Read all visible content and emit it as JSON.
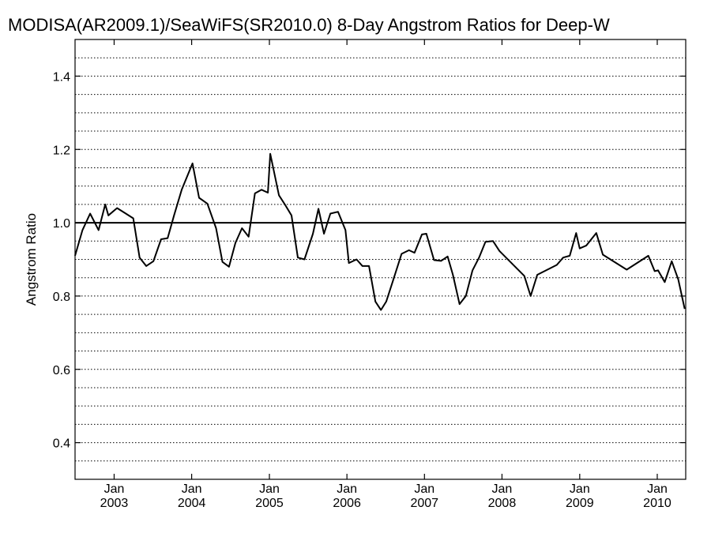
{
  "chart_data": {
    "type": "line",
    "title": "MODISA(AR2009.1)/SeaWiFS(SR2010.0) 8-Day Angstrom Ratios for Deep-W",
    "xlabel": "",
    "ylabel": "Angstrom Ratio",
    "xlim": [
      "2002-07-01",
      "2010-05-15"
    ],
    "ylim": [
      0.3,
      1.5
    ],
    "y_ticks": [
      "0.4",
      "0.6",
      "0.8",
      "1.0",
      "1.2",
      "1.4"
    ],
    "x_ticks": [
      {
        "month": "Jan",
        "year": "2003",
        "date": "2003-01-01"
      },
      {
        "month": "Jan",
        "year": "2004",
        "date": "2004-01-01"
      },
      {
        "month": "Jan",
        "year": "2005",
        "date": "2005-01-01"
      },
      {
        "month": "Jan",
        "year": "2006",
        "date": "2006-01-01"
      },
      {
        "month": "Jan",
        "year": "2007",
        "date": "2007-01-01"
      },
      {
        "month": "Jan",
        "year": "2008",
        "date": "2008-01-01"
      },
      {
        "month": "Jan",
        "year": "2009",
        "date": "2009-01-01"
      },
      {
        "month": "Jan",
        "year": "2010",
        "date": "2010-01-01"
      }
    ],
    "grid": "horizontal dotted every 0.05",
    "reference_line": 1.0,
    "series": [
      {
        "points": [
          [
            "2002-07-01",
            0.91
          ],
          [
            "2002-08-05",
            0.98
          ],
          [
            "2002-09-10",
            1.025
          ],
          [
            "2002-10-20",
            0.98
          ],
          [
            "2002-11-20",
            1.05
          ],
          [
            "2002-12-05",
            1.02
          ],
          [
            "2003-01-15",
            1.04
          ],
          [
            "2003-02-25",
            1.025
          ],
          [
            "2003-04-01",
            1.012
          ],
          [
            "2003-05-01",
            0.905
          ],
          [
            "2003-06-01",
            0.882
          ],
          [
            "2003-07-05",
            0.895
          ],
          [
            "2003-08-10",
            0.955
          ],
          [
            "2003-09-10",
            0.958
          ],
          [
            "2003-10-10",
            1.02
          ],
          [
            "2003-11-15",
            1.09
          ],
          [
            "2004-01-05",
            1.162
          ],
          [
            "2004-02-05",
            1.068
          ],
          [
            "2004-03-15",
            1.052
          ],
          [
            "2004-04-25",
            0.985
          ],
          [
            "2004-05-25",
            0.893
          ],
          [
            "2004-06-25",
            0.88
          ],
          [
            "2004-07-25",
            0.945
          ],
          [
            "2004-08-25",
            0.985
          ],
          [
            "2004-09-25",
            0.962
          ],
          [
            "2004-10-25",
            1.08
          ],
          [
            "2004-11-25",
            1.09
          ],
          [
            "2004-12-25",
            1.082
          ],
          [
            "2005-01-05",
            1.188
          ],
          [
            "2005-02-15",
            1.075
          ],
          [
            "2005-03-15",
            1.05
          ],
          [
            "2005-04-15",
            1.02
          ],
          [
            "2005-05-15",
            0.905
          ],
          [
            "2005-06-15",
            0.9
          ],
          [
            "2005-07-25",
            0.97
          ],
          [
            "2005-08-20",
            1.038
          ],
          [
            "2005-09-15",
            0.97
          ],
          [
            "2005-10-15",
            1.025
          ],
          [
            "2005-11-20",
            1.03
          ],
          [
            "2005-12-25",
            0.98
          ],
          [
            "2006-01-10",
            0.89
          ],
          [
            "2006-02-15",
            0.9
          ],
          [
            "2006-03-15",
            0.882
          ],
          [
            "2006-04-15",
            0.882
          ],
          [
            "2006-05-15",
            0.785
          ],
          [
            "2006-06-10",
            0.762
          ],
          [
            "2006-07-05",
            0.785
          ],
          [
            "2006-08-05",
            0.84
          ],
          [
            "2006-09-15",
            0.915
          ],
          [
            "2006-10-20",
            0.925
          ],
          [
            "2006-11-15",
            0.918
          ],
          [
            "2006-12-20",
            0.968
          ],
          [
            "2007-01-10",
            0.97
          ],
          [
            "2007-02-15",
            0.898
          ],
          [
            "2007-03-20",
            0.896
          ],
          [
            "2007-04-20",
            0.908
          ],
          [
            "2007-05-15",
            0.858
          ],
          [
            "2007-06-15",
            0.778
          ],
          [
            "2007-07-15",
            0.8
          ],
          [
            "2007-08-15",
            0.87
          ],
          [
            "2007-09-15",
            0.905
          ],
          [
            "2007-10-15",
            0.948
          ],
          [
            "2007-11-20",
            0.95
          ],
          [
            "2007-12-20",
            0.923
          ],
          [
            "2008-04-15",
            0.855
          ],
          [
            "2008-05-15",
            0.8
          ],
          [
            "2008-06-15",
            0.858
          ],
          [
            "2008-09-15",
            0.885
          ],
          [
            "2008-10-15",
            0.905
          ],
          [
            "2008-11-15",
            0.91
          ],
          [
            "2008-12-15",
            0.972
          ],
          [
            "2009-01-01",
            0.93
          ],
          [
            "2009-02-01",
            0.938
          ],
          [
            "2009-03-20",
            0.972
          ],
          [
            "2009-04-20",
            0.913
          ],
          [
            "2009-08-10",
            0.872
          ],
          [
            "2009-11-20",
            0.91
          ],
          [
            "2009-12-20",
            0.868
          ],
          [
            "2010-01-05",
            0.87
          ],
          [
            "2010-02-05",
            0.838
          ],
          [
            "2010-03-10",
            0.895
          ],
          [
            "2010-04-10",
            0.845
          ],
          [
            "2010-05-10",
            0.765
          ]
        ]
      }
    ]
  }
}
